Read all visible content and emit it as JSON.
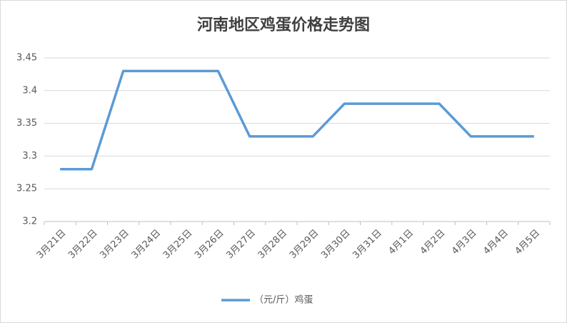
{
  "chart_data": {
    "type": "line",
    "title": "河南地区鸡蛋价格走势图",
    "categories": [
      "3月21日",
      "3月22日",
      "3月23日",
      "3月24日",
      "3月25日",
      "3月26日",
      "3月27日",
      "3月28日",
      "3月29日",
      "3月30日",
      "3月31日",
      "4月1日",
      "4月2日",
      "4月3日",
      "4月4日",
      "4月5日"
    ],
    "series": [
      {
        "name": "（元/斤）鸡蛋",
        "color": "#5b9bd5",
        "values": [
          3.28,
          3.28,
          3.43,
          3.43,
          3.43,
          3.43,
          3.33,
          3.33,
          3.33,
          3.38,
          3.38,
          3.38,
          3.38,
          3.33,
          3.33,
          3.33
        ]
      }
    ],
    "ylim": [
      3.2,
      3.45
    ],
    "yticks": [
      3.2,
      3.25,
      3.3,
      3.35,
      3.4,
      3.45
    ],
    "grid": true,
    "legend": "bottom"
  }
}
